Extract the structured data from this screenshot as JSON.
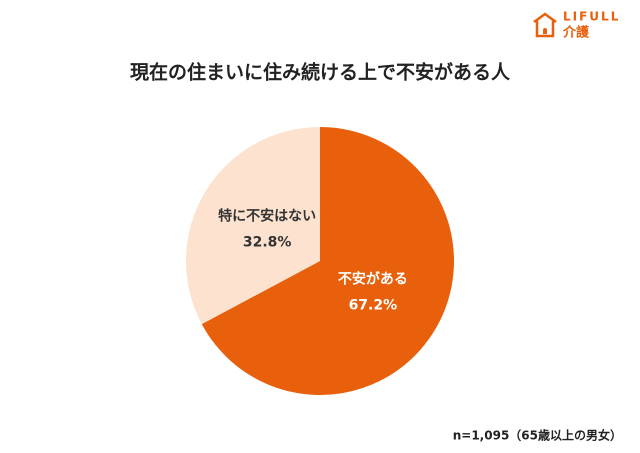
{
  "logo": {
    "brand": "LIFULL",
    "service": "介護"
  },
  "chart_data": {
    "type": "pie",
    "title": "現在の住まいに住み続ける上で不安がある人",
    "categories": [
      "不安がある",
      "特に不安はない"
    ],
    "values": [
      67.2,
      32.8
    ],
    "value_labels": [
      "67.2%",
      "32.8%"
    ],
    "colors": [
      "#e8600c",
      "#fce2cf"
    ],
    "note": "n=1,095（65歳以上の男女）"
  }
}
